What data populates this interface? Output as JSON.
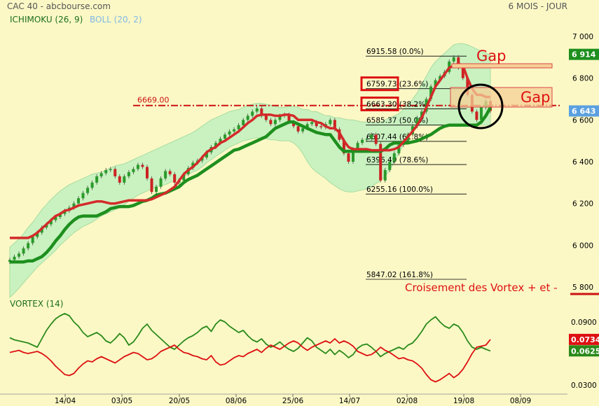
{
  "header": {
    "left": "CAC 40 - abcbourse.com",
    "right": "6 MOIS - JOUR",
    "ichimoku_label": "ICHIMOKU (26, 9)",
    "boll_label": "BOLL (20, 2)",
    "vortex_label": "VORTEX (14)"
  },
  "colors": {
    "background": "#fbf8c6",
    "boll_fill": "#c9f2c0",
    "kijun": "#d42a2a",
    "tenkan": "#1e8f1e",
    "candle_up": "#2a9a2a",
    "candle_down": "#cc2222",
    "vortex_plus": "#2a8a1a",
    "vortex_minus": "#dd1111",
    "gap_fill": "#f6cf96"
  },
  "annotations": {
    "gap_top": "Gap",
    "gap_right": "Gap",
    "crossing": "Croisement des Vortex + et -",
    "resistance_value": "6669.00"
  },
  "chart_data": [
    {
      "type": "candlestick",
      "title": "CAC 40",
      "ylim": [
        5780,
        7000
      ],
      "yticks": [
        "7 000",
        "6 800",
        "6 600",
        "6 400",
        "6 200",
        "6 000",
        "5 800"
      ],
      "yticks_values": [
        7000,
        6800,
        6600,
        6400,
        6200,
        6000,
        5800
      ],
      "xticks": [
        "14/04",
        "03/05",
        "20/05",
        "08/06",
        "25/06",
        "14/07",
        "02/08",
        "19/08",
        "08/09"
      ],
      "price_badges": [
        {
          "label": "6 914",
          "value": 6914,
          "color": "#1e8f1e"
        },
        {
          "label": "6 643",
          "value": 6643,
          "color": "#5aa0e0"
        }
      ],
      "fibonacci": [
        {
          "value": 6915.58,
          "label": "6915.58 (0.0%)"
        },
        {
          "value": 6759.73,
          "label": "6759.73 (23.6%)"
        },
        {
          "value": 6663.3,
          "label": "6663.30 (38.2%)"
        },
        {
          "value": 6585.37,
          "label": "6585.37 (50.0%)"
        },
        {
          "value": 6507.44,
          "label": "6507.44 (61.8%)"
        },
        {
          "value": 6396.49,
          "label": "6396.49 (78.6%)"
        },
        {
          "value": 6255.16,
          "label": "6255.16 (100.0%)"
        },
        {
          "value": 5847.02,
          "label": "5847.02 (161.8%)"
        }
      ],
      "resistance": 6669.0,
      "close": [
        5930,
        5945,
        5960,
        5985,
        6010,
        6040,
        6060,
        6085,
        6100,
        6120,
        6135,
        6150,
        6165,
        6180,
        6200,
        6225,
        6250,
        6275,
        6300,
        6330,
        6345,
        6360,
        6365,
        6330,
        6300,
        6330,
        6350,
        6365,
        6385,
        6375,
        6320,
        6255,
        6280,
        6320,
        6355,
        6340,
        6300,
        6310,
        6340,
        6370,
        6395,
        6405,
        6420,
        6445,
        6470,
        6490,
        6510,
        6530,
        6545,
        6555,
        6575,
        6600,
        6620,
        6640,
        6655,
        6620,
        6600,
        6580,
        6600,
        6620,
        6625,
        6590,
        6570,
        6545,
        6560,
        6580,
        6590,
        6570,
        6565,
        6580,
        6600,
        6555,
        6505,
        6440,
        6400,
        6460,
        6490,
        6505,
        6510,
        6530,
        6485,
        6310,
        6360,
        6400,
        6440,
        6480,
        6500,
        6530,
        6570,
        6610,
        6640,
        6700,
        6760,
        6790,
        6810,
        6830,
        6880,
        6900,
        6850,
        6800,
        6720,
        6640,
        6600,
        6660,
        6690,
        6643
      ],
      "kijun": [
        6035,
        6035,
        6035,
        6035,
        6035,
        6045,
        6060,
        6080,
        6100,
        6120,
        6140,
        6150,
        6165,
        6170,
        6180,
        6190,
        6195,
        6200,
        6205,
        6210,
        6210,
        6205,
        6200,
        6200,
        6205,
        6210,
        6215,
        6215,
        6215,
        6215,
        6215,
        6220,
        6230,
        6240,
        6250,
        6265,
        6280,
        6310,
        6340,
        6360,
        6375,
        6395,
        6420,
        6445,
        6460,
        6470,
        6490,
        6500,
        6515,
        6530,
        6545,
        6565,
        6585,
        6600,
        6620,
        6625,
        6625,
        6625,
        6620,
        6620,
        6625,
        6625,
        6620,
        6600,
        6600,
        6600,
        6600,
        6590,
        6585,
        6570,
        6560,
        6560,
        6540,
        6500,
        6470,
        6460,
        6460,
        6460,
        6460,
        6455,
        6455,
        6455,
        6455,
        6455,
        6460,
        6470,
        6495,
        6520,
        6545,
        6575,
        6610,
        6660,
        6710,
        6760,
        6790,
        6820,
        6850,
        6860,
        6870,
        6860,
        6800,
        6750,
        6720,
        6720,
        6710,
        6710
      ],
      "tenkan": [
        5920,
        5920,
        5920,
        5920,
        5925,
        5925,
        5935,
        5945,
        5965,
        5990,
        6020,
        6045,
        6075,
        6100,
        6120,
        6135,
        6140,
        6140,
        6140,
        6140,
        6150,
        6160,
        6175,
        6180,
        6185,
        6185,
        6185,
        6190,
        6200,
        6210,
        6215,
        6225,
        6240,
        6245,
        6250,
        6260,
        6270,
        6280,
        6300,
        6315,
        6325,
        6335,
        6350,
        6365,
        6380,
        6395,
        6410,
        6425,
        6440,
        6455,
        6460,
        6470,
        6480,
        6490,
        6500,
        6510,
        6520,
        6540,
        6560,
        6570,
        6580,
        6590,
        6590,
        6580,
        6570,
        6560,
        6550,
        6540,
        6535,
        6530,
        6530,
        6500,
        6470,
        6450,
        6450,
        6450,
        6450,
        6450,
        6450,
        6450,
        6450,
        6450,
        6460,
        6480,
        6490,
        6490,
        6490,
        6490,
        6495,
        6500,
        6510,
        6520,
        6530,
        6545,
        6560,
        6570,
        6575,
        6575,
        6575,
        6575,
        6575,
        6575,
        6575,
        6590,
        6620,
        6660
      ],
      "boll_upper": [
        5990,
        6010,
        6030,
        6055,
        6085,
        6110,
        6140,
        6170,
        6195,
        6220,
        6240,
        6260,
        6275,
        6290,
        6300,
        6310,
        6320,
        6330,
        6340,
        6345,
        6350,
        6360,
        6370,
        6380,
        6385,
        6390,
        6400,
        6410,
        6420,
        6430,
        6440,
        6450,
        6460,
        6470,
        6480,
        6490,
        6500,
        6510,
        6520,
        6530,
        6540,
        6555,
        6570,
        6585,
        6600,
        6610,
        6620,
        6630,
        6640,
        6645,
        6650,
        6660,
        6670,
        6675,
        6680,
        6680,
        6675,
        6670,
        6665,
        6660,
        6660,
        6665,
        6665,
        6660,
        6650,
        6650,
        6640,
        6640,
        6630,
        6620,
        6620,
        6610,
        6610,
        6605,
        6600,
        6600,
        6595,
        6590,
        6590,
        6590,
        6585,
        6590,
        6600,
        6610,
        6620,
        6630,
        6650,
        6670,
        6700,
        6730,
        6770,
        6810,
        6850,
        6880,
        6900,
        6920,
        6940,
        6960,
        6965,
        6965,
        6960,
        6950,
        6940,
        6930,
        6920,
        6910
      ],
      "boll_lower": [
        5750,
        5770,
        5795,
        5820,
        5845,
        5870,
        5895,
        5915,
        5935,
        5955,
        5975,
        6000,
        6020,
        6040,
        6060,
        6075,
        6090,
        6100,
        6110,
        6125,
        6140,
        6150,
        6160,
        6170,
        6180,
        6195,
        6210,
        6225,
        6240,
        6250,
        6260,
        6270,
        6280,
        6285,
        6290,
        6300,
        6310,
        6320,
        6330,
        6340,
        6350,
        6360,
        6375,
        6395,
        6410,
        6425,
        6440,
        6455,
        6470,
        6480,
        6490,
        6500,
        6505,
        6510,
        6515,
        6510,
        6510,
        6505,
        6505,
        6500,
        6500,
        6500,
        6490,
        6470,
        6440,
        6400,
        6370,
        6350,
        6335,
        6320,
        6300,
        6285,
        6270,
        6260,
        6255,
        6255,
        6260,
        6265,
        6270,
        6280,
        6295,
        6310,
        6330,
        6360,
        6400,
        6440,
        6480,
        6520,
        6550,
        6570,
        6575,
        6575,
        6575,
        6575,
        6575,
        6575,
        6575,
        6575,
        6575,
        6575,
        6575,
        6575,
        6575,
        6575,
        6575,
        6575
      ]
    },
    {
      "type": "line",
      "title": "VORTEX (14)",
      "ylim": [
        0.025,
        0.1
      ],
      "yticks": [
        "0.0900",
        "0.0600",
        "0.0300"
      ],
      "yticks_values": [
        0.09,
        0.06,
        0.03
      ],
      "series": [
        {
          "name": "VORTEX +",
          "badge": "0.0625",
          "color": "#2a8a1a",
          "values": [
            0.075,
            0.073,
            0.072,
            0.071,
            0.07,
            0.068,
            0.066,
            0.074,
            0.082,
            0.088,
            0.093,
            0.096,
            0.098,
            0.096,
            0.09,
            0.086,
            0.08,
            0.076,
            0.078,
            0.08,
            0.077,
            0.072,
            0.07,
            0.074,
            0.079,
            0.075,
            0.068,
            0.071,
            0.077,
            0.084,
            0.088,
            0.082,
            0.078,
            0.074,
            0.07,
            0.066,
            0.064,
            0.068,
            0.072,
            0.075,
            0.077,
            0.08,
            0.084,
            0.086,
            0.081,
            0.088,
            0.092,
            0.09,
            0.086,
            0.083,
            0.08,
            0.082,
            0.077,
            0.073,
            0.071,
            0.074,
            0.069,
            0.066,
            0.068,
            0.071,
            0.067,
            0.064,
            0.062,
            0.065,
            0.07,
            0.075,
            0.072,
            0.066,
            0.063,
            0.06,
            0.064,
            0.059,
            0.063,
            0.06,
            0.056,
            0.059,
            0.065,
            0.068,
            0.069,
            0.066,
            0.062,
            0.057,
            0.06,
            0.062,
            0.064,
            0.066,
            0.064,
            0.068,
            0.07,
            0.075,
            0.081,
            0.088,
            0.092,
            0.095,
            0.09,
            0.086,
            0.084,
            0.088,
            0.086,
            0.08,
            0.072,
            0.066,
            0.064,
            0.066,
            0.064,
            0.0625
          ]
        },
        {
          "name": "VORTEX -",
          "badge": "0.0734",
          "color": "#dd1111",
          "values": [
            0.061,
            0.062,
            0.063,
            0.061,
            0.06,
            0.061,
            0.062,
            0.06,
            0.057,
            0.053,
            0.048,
            0.044,
            0.04,
            0.039,
            0.041,
            0.046,
            0.05,
            0.053,
            0.052,
            0.055,
            0.057,
            0.055,
            0.053,
            0.051,
            0.054,
            0.057,
            0.059,
            0.061,
            0.06,
            0.057,
            0.054,
            0.055,
            0.058,
            0.062,
            0.064,
            0.066,
            0.068,
            0.064,
            0.061,
            0.06,
            0.058,
            0.057,
            0.055,
            0.054,
            0.058,
            0.052,
            0.049,
            0.05,
            0.053,
            0.056,
            0.058,
            0.057,
            0.06,
            0.062,
            0.064,
            0.061,
            0.065,
            0.068,
            0.066,
            0.064,
            0.067,
            0.07,
            0.072,
            0.07,
            0.066,
            0.063,
            0.066,
            0.068,
            0.07,
            0.072,
            0.07,
            0.074,
            0.07,
            0.072,
            0.07,
            0.067,
            0.062,
            0.06,
            0.058,
            0.059,
            0.062,
            0.066,
            0.063,
            0.061,
            0.058,
            0.055,
            0.056,
            0.054,
            0.053,
            0.05,
            0.046,
            0.04,
            0.035,
            0.033,
            0.035,
            0.038,
            0.041,
            0.037,
            0.04,
            0.045,
            0.052,
            0.06,
            0.066,
            0.067,
            0.068,
            0.0734
          ]
        }
      ]
    }
  ]
}
